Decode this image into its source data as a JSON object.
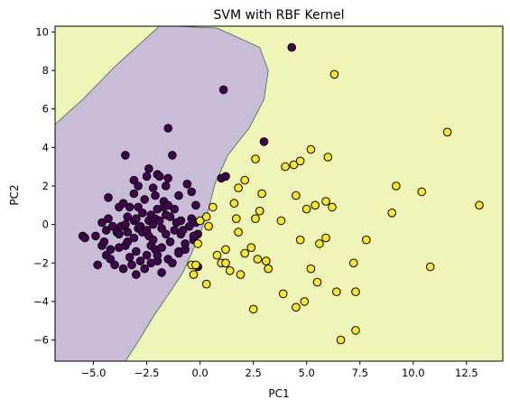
{
  "chart_data": {
    "type": "scatter",
    "title": "SVM with RBF Kernel",
    "xlabel": "PC1",
    "ylabel": "PC2",
    "xlim": [
      -6.8,
      14.2
    ],
    "ylim": [
      -7.1,
      10.3
    ],
    "xticks": [
      -5.0,
      -2.5,
      0.0,
      2.5,
      5.0,
      7.5,
      10.0,
      12.5
    ],
    "xtick_labels": [
      "−5.0",
      "−2.5",
      "0.0",
      "2.5",
      "5.0",
      "7.5",
      "10.0",
      "12.5"
    ],
    "yticks": [
      -6,
      -4,
      -2,
      0,
      2,
      4,
      6,
      8,
      10
    ],
    "ytick_labels": [
      "−6",
      "−4",
      "−2",
      "0",
      "2",
      "4",
      "6",
      "8",
      "10"
    ],
    "grid": false,
    "colors": {
      "class0_region": "#c8bcd7",
      "class1_region": "#eff5b7",
      "boundary": "#2e6f4d",
      "class0_point": "#440154",
      "class1_point": "#fde725",
      "edge": "#000000"
    },
    "decision_boundary": [
      [
        -1.2,
        10.3
      ],
      [
        0.8,
        10.2
      ],
      [
        2.8,
        9.2
      ],
      [
        3.2,
        8.0
      ],
      [
        3.0,
        6.5
      ],
      [
        2.3,
        5.0
      ],
      [
        1.3,
        3.6
      ],
      [
        0.7,
        2.1
      ],
      [
        0.4,
        0.8
      ],
      [
        0.0,
        -0.5
      ],
      [
        -0.4,
        -1.5
      ],
      [
        -0.8,
        -2.5
      ],
      [
        -1.4,
        -3.5
      ],
      [
        -2.2,
        -4.8
      ],
      [
        -2.8,
        -5.9
      ],
      [
        -3.5,
        -7.1
      ]
    ],
    "series": [
      {
        "class": 0,
        "points": [
          [
            -5.5,
            -0.6
          ],
          [
            -5.4,
            -0.7
          ],
          [
            -4.9,
            -0.6
          ],
          [
            -4.8,
            -2.1
          ],
          [
            -4.6,
            -1.1
          ],
          [
            -4.6,
            0.1
          ],
          [
            -4.5,
            -0.9
          ],
          [
            -4.4,
            -1.6
          ],
          [
            -4.4,
            -0.3
          ],
          [
            -4.3,
            1.4
          ],
          [
            -4.3,
            0.3
          ],
          [
            -4.2,
            -1.8
          ],
          [
            -4.2,
            -1.3
          ],
          [
            -4.1,
            -0.1
          ],
          [
            -4.0,
            -2.1
          ],
          [
            -3.9,
            -0.4
          ],
          [
            -3.8,
            -1.2
          ],
          [
            -3.8,
            -0.5
          ],
          [
            -3.8,
            0.9
          ],
          [
            -3.7,
            -0.1
          ],
          [
            -3.6,
            1.1
          ],
          [
            -3.6,
            -2.3
          ],
          [
            -3.5,
            3.6
          ],
          [
            -3.5,
            0.0
          ],
          [
            -3.5,
            -1.1
          ],
          [
            -3.4,
            0.4
          ],
          [
            -3.4,
            -0.9
          ],
          [
            -3.3,
            0.9
          ],
          [
            -3.3,
            -1.7
          ],
          [
            -3.2,
            -2.1
          ],
          [
            -3.1,
            2.3
          ],
          [
            -3.1,
            1.6
          ],
          [
            -3.1,
            0.2
          ],
          [
            -3.1,
            -0.7
          ],
          [
            -3.0,
            0.3
          ],
          [
            -3.0,
            -1.4
          ],
          [
            -3.0,
            -2.6
          ],
          [
            -2.9,
            2.0
          ],
          [
            -2.9,
            -0.2
          ],
          [
            -2.8,
            -0.1
          ],
          [
            -2.8,
            -1.9
          ],
          [
            -2.7,
            0.6
          ],
          [
            -2.7,
            -0.4
          ],
          [
            -2.6,
            1.3
          ],
          [
            -2.6,
            -2.3
          ],
          [
            -2.5,
            2.5
          ],
          [
            -2.5,
            -0.3
          ],
          [
            -2.5,
            -1.6
          ],
          [
            -2.4,
            2.9
          ],
          [
            -2.4,
            0.2
          ],
          [
            -2.4,
            -0.6
          ],
          [
            -2.3,
            0.5
          ],
          [
            -2.3,
            -1.1
          ],
          [
            -2.3,
            -2.0
          ],
          [
            -2.2,
            1.9
          ],
          [
            -2.2,
            0.0
          ],
          [
            -2.2,
            -0.8
          ],
          [
            -2.1,
            1.5
          ],
          [
            -2.1,
            0.3
          ],
          [
            -2.1,
            -1.3
          ],
          [
            -2.0,
            2.6
          ],
          [
            -2.0,
            0.8
          ],
          [
            -2.0,
            -1.9
          ],
          [
            -1.9,
            2.5
          ],
          [
            -1.9,
            0.2
          ],
          [
            -1.8,
            -0.2
          ],
          [
            -1.8,
            -1.2
          ],
          [
            -1.8,
            -2.5
          ],
          [
            -1.7,
            1.2
          ],
          [
            -1.7,
            0.9
          ],
          [
            -1.6,
            0.5
          ],
          [
            -1.6,
            -0.5
          ],
          [
            -1.6,
            2.0
          ],
          [
            -1.5,
            5.0
          ],
          [
            -1.5,
            2.4
          ],
          [
            -1.5,
            1.0
          ],
          [
            -1.5,
            -1.8
          ],
          [
            -1.4,
            0.4
          ],
          [
            -1.4,
            -0.9
          ],
          [
            -1.3,
            3.6
          ],
          [
            -1.3,
            -2.0
          ],
          [
            -1.2,
            -0.3
          ],
          [
            -1.2,
            0.8
          ],
          [
            -1.1,
            0.1
          ],
          [
            -1.0,
            1.5
          ],
          [
            -1.0,
            -1.4
          ],
          [
            -0.9,
            -0.5
          ],
          [
            -0.9,
            0.2
          ],
          [
            -0.8,
            -0.3
          ],
          [
            -0.7,
            -1.0
          ],
          [
            -0.6,
            2.1
          ],
          [
            -0.5,
            -0.1
          ],
          [
            -0.4,
            0.3
          ],
          [
            -0.3,
            -0.8
          ],
          [
            -0.2,
            1.0
          ],
          [
            -0.2,
            0.1
          ],
          [
            -0.1,
            -0.5
          ],
          [
            -0.1,
            -2.2
          ],
          [
            -0.7,
            -1.3
          ],
          [
            -0.4,
            1.7
          ],
          [
            1.1,
            7.0
          ],
          [
            1.0,
            2.4
          ],
          [
            1.2,
            2.5
          ],
          [
            3.0,
            4.3
          ],
          [
            4.3,
            9.2
          ],
          [
            -0.3,
            -0.6
          ],
          [
            -2.0,
            -1.6
          ],
          [
            -1.0,
            -1.5
          ],
          [
            -3.4,
            -0.4
          ],
          [
            -2.9,
            0.9
          ]
        ]
      },
      {
        "class": 1,
        "points": [
          [
            0.0,
            0.2
          ],
          [
            -0.1,
            -1.0
          ],
          [
            -0.4,
            -2.1
          ],
          [
            -0.2,
            -2.1
          ],
          [
            -0.3,
            -2.6
          ],
          [
            0.3,
            0.4
          ],
          [
            0.4,
            -0.1
          ],
          [
            0.6,
            0.9
          ],
          [
            0.3,
            -3.1
          ],
          [
            0.8,
            -1.6
          ],
          [
            1.0,
            -2.0
          ],
          [
            1.2,
            -1.3
          ],
          [
            1.2,
            -2.0
          ],
          [
            1.4,
            -2.4
          ],
          [
            1.6,
            1.1
          ],
          [
            1.7,
            0.3
          ],
          [
            1.8,
            -0.4
          ],
          [
            1.8,
            1.9
          ],
          [
            1.9,
            -2.6
          ],
          [
            2.1,
            2.3
          ],
          [
            2.1,
            -1.5
          ],
          [
            2.4,
            -1.2
          ],
          [
            2.6,
            3.4
          ],
          [
            2.6,
            0.3
          ],
          [
            2.7,
            -1.8
          ],
          [
            2.8,
            0.7
          ],
          [
            2.9,
            1.6
          ],
          [
            3.1,
            -1.9
          ],
          [
            3.2,
            -2.3
          ],
          [
            2.5,
            -4.4
          ],
          [
            3.8,
            0.2
          ],
          [
            3.9,
            -3.6
          ],
          [
            4.0,
            3.0
          ],
          [
            4.4,
            3.1
          ],
          [
            4.5,
            1.5
          ],
          [
            4.5,
            -4.3
          ],
          [
            4.7,
            -0.8
          ],
          [
            4.7,
            3.3
          ],
          [
            4.9,
            -4.0
          ],
          [
            5.0,
            0.8
          ],
          [
            5.2,
            -2.3
          ],
          [
            5.2,
            3.9
          ],
          [
            5.4,
            1.0
          ],
          [
            5.5,
            -3.0
          ],
          [
            5.6,
            -1.0
          ],
          [
            5.9,
            1.2
          ],
          [
            5.9,
            -0.7
          ],
          [
            6.0,
            3.5
          ],
          [
            6.2,
            0.9
          ],
          [
            6.3,
            7.8
          ],
          [
            6.4,
            -3.5
          ],
          [
            6.6,
            -6.0
          ],
          [
            7.2,
            -2.0
          ],
          [
            7.3,
            -3.5
          ],
          [
            7.3,
            -5.5
          ],
          [
            7.8,
            -0.8
          ],
          [
            9.0,
            0.6
          ],
          [
            9.2,
            2.0
          ],
          [
            10.4,
            1.7
          ],
          [
            10.8,
            -2.2
          ],
          [
            11.6,
            4.8
          ],
          [
            13.1,
            1.0
          ]
        ]
      }
    ]
  }
}
